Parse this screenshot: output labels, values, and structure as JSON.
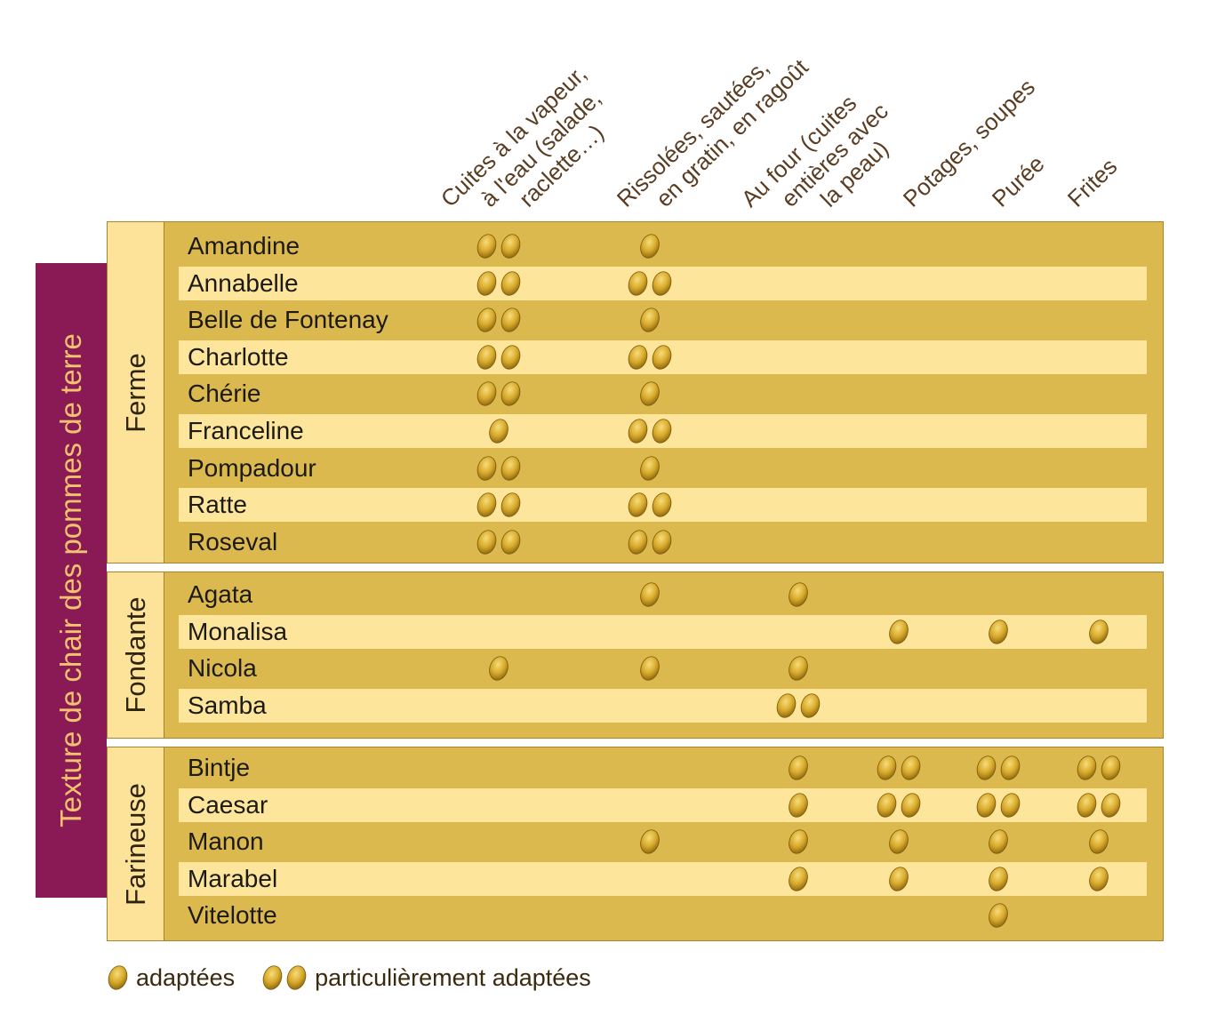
{
  "chart_data": {
    "type": "table",
    "title": "",
    "row_axis_label": "Texture de chair des pommes de terre",
    "columns": [
      {
        "lines": [
          "Cuites à la vapeur,",
          "à l'eau (salade,",
          "raclette…)"
        ]
      },
      {
        "lines": [
          "Rissolées, sautées,",
          "en gratin, en ragoût"
        ]
      },
      {
        "lines": [
          "Au four (cuites",
          "entières avec",
          "la peau)"
        ]
      },
      {
        "lines": [
          "Potages, soupes"
        ]
      },
      {
        "lines": [
          "Purée"
        ]
      },
      {
        "lines": [
          "Frites"
        ]
      }
    ],
    "value_scale": {
      "0": "",
      "1": "adaptées",
      "2": "particulièrement adaptées"
    },
    "groups": [
      {
        "name": "Ferme",
        "rows": [
          {
            "name": "Amandine",
            "values": [
              2,
              1,
              0,
              0,
              0,
              0
            ]
          },
          {
            "name": "Annabelle",
            "values": [
              2,
              2,
              0,
              0,
              0,
              0
            ]
          },
          {
            "name": "Belle de Fontenay",
            "values": [
              2,
              1,
              0,
              0,
              0,
              0
            ]
          },
          {
            "name": "Charlotte",
            "values": [
              2,
              2,
              0,
              0,
              0,
              0
            ]
          },
          {
            "name": "Chérie",
            "values": [
              2,
              1,
              0,
              0,
              0,
              0
            ]
          },
          {
            "name": "Franceline",
            "values": [
              1,
              2,
              0,
              0,
              0,
              0
            ]
          },
          {
            "name": "Pompadour",
            "values": [
              2,
              1,
              0,
              0,
              0,
              0
            ]
          },
          {
            "name": "Ratte",
            "values": [
              2,
              2,
              0,
              0,
              0,
              0
            ]
          },
          {
            "name": "Roseval",
            "values": [
              2,
              2,
              0,
              0,
              0,
              0
            ]
          }
        ]
      },
      {
        "name": "Fondante",
        "rows": [
          {
            "name": "Agata",
            "values": [
              0,
              1,
              1,
              0,
              0,
              0
            ]
          },
          {
            "name": "Monalisa",
            "values": [
              0,
              0,
              0,
              1,
              1,
              1
            ]
          },
          {
            "name": "Nicola",
            "values": [
              1,
              1,
              1,
              0,
              0,
              0
            ]
          },
          {
            "name": "Samba",
            "values": [
              0,
              0,
              2,
              0,
              0,
              0
            ]
          }
        ]
      },
      {
        "name": "Farineuse",
        "rows": [
          {
            "name": "Bintje",
            "values": [
              0,
              0,
              1,
              2,
              2,
              2
            ]
          },
          {
            "name": "Caesar",
            "values": [
              0,
              0,
              1,
              2,
              2,
              2
            ]
          },
          {
            "name": "Manon",
            "values": [
              0,
              1,
              1,
              1,
              1,
              1
            ]
          },
          {
            "name": "Marabel",
            "values": [
              0,
              0,
              1,
              1,
              1,
              1
            ]
          },
          {
            "name": "Vitelotte",
            "values": [
              0,
              0,
              0,
              0,
              1,
              0
            ]
          }
        ]
      }
    ]
  },
  "legend": {
    "single": "adaptées",
    "double": "particulièrement adaptées"
  },
  "colors": {
    "band": "#dcb94e",
    "row_light": "#fde59b",
    "side_label": "#8a1a55",
    "side_text": "#f2c36e",
    "header_text": "#5a3d22",
    "potato": "#d7a92a"
  },
  "icons": {
    "marker": "potato-icon"
  }
}
